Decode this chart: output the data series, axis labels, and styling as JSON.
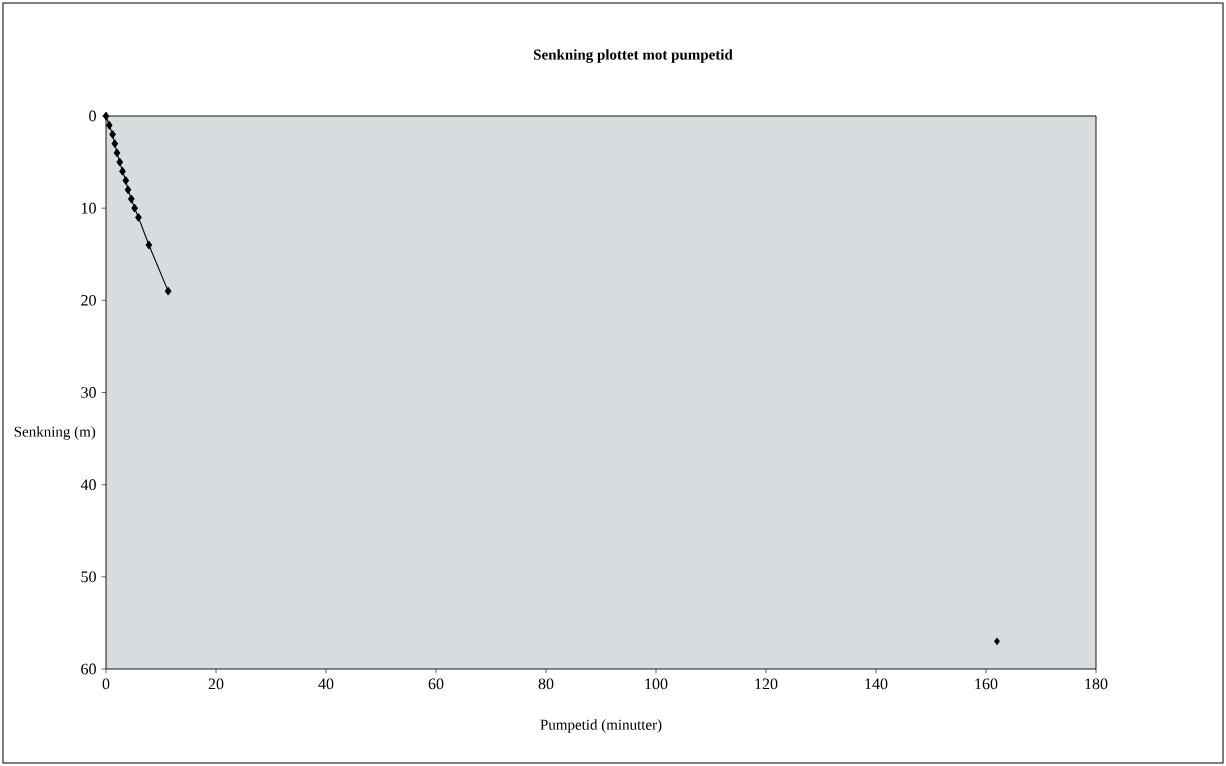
{
  "chart_data": {
    "type": "line",
    "title": "Senkning plottet mot pumpetid",
    "xlabel": "Pumpetid (minutter)",
    "ylabel": "Senkning (m)",
    "xlim": [
      0,
      180
    ],
    "ylim": [
      60,
      0
    ],
    "xticks": [
      0,
      20,
      40,
      60,
      80,
      100,
      120,
      140,
      160,
      180
    ],
    "yticks": [
      0,
      10,
      20,
      30,
      40,
      50,
      60
    ],
    "grid": false,
    "legend": false,
    "marker": "diamond",
    "line_style": "solid",
    "series": [
      {
        "color": "#000000",
        "x": [
          0,
          0.6,
          1.2,
          1.6,
          2.0,
          2.5,
          3.0,
          3.6,
          4.0,
          4.6,
          5.2,
          5.9,
          7.8,
          11.3
        ],
        "values": [
          0,
          1,
          2,
          3,
          4,
          5,
          6,
          7,
          8,
          9,
          10,
          11,
          14,
          19
        ]
      },
      {
        "type": "scatter",
        "color": "#000000",
        "x": [
          162
        ],
        "values": [
          57
        ]
      }
    ]
  }
}
